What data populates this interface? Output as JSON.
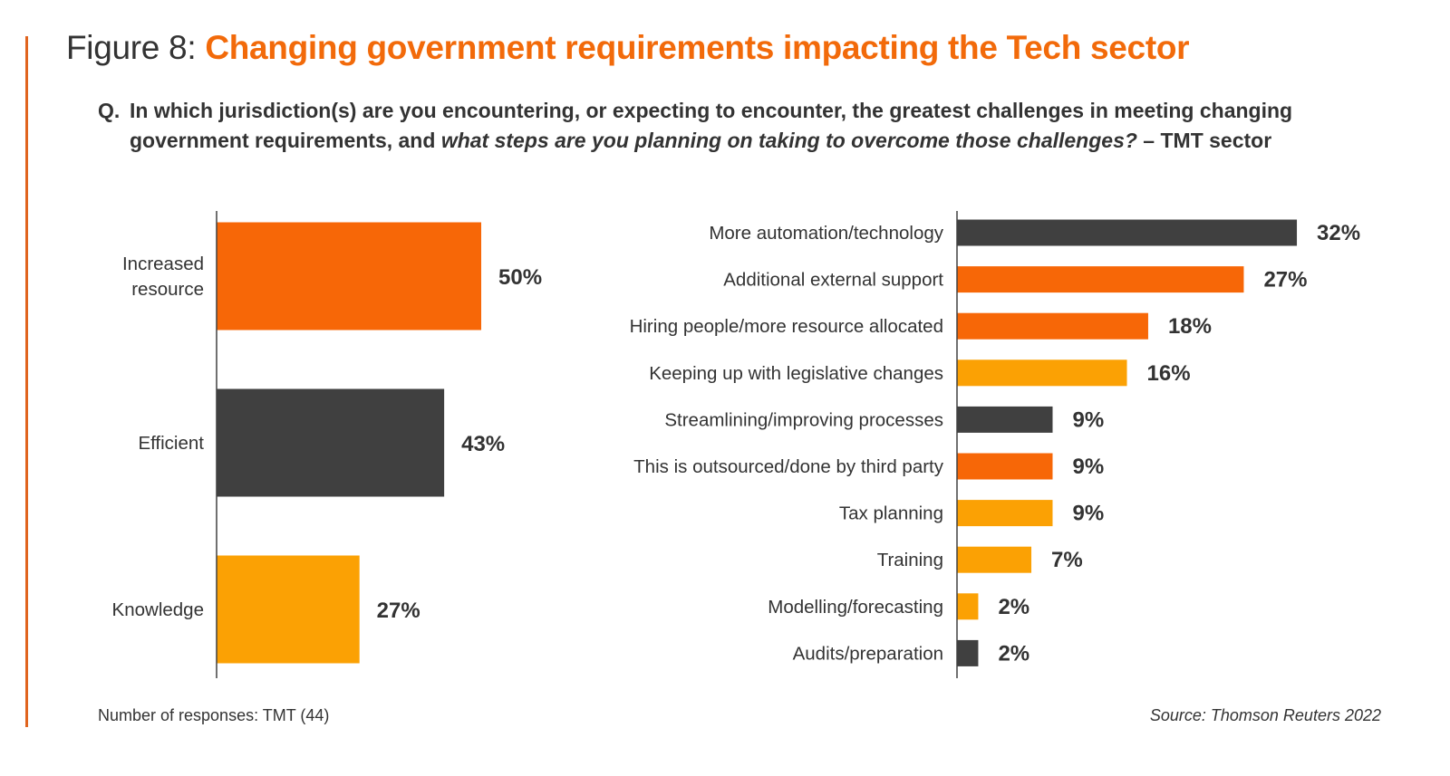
{
  "header": {
    "figure_prefix": "Figure 8:",
    "title": "Changing government requirements impacting the Tech sector",
    "question_marker": "Q.",
    "question_part1": "In which jurisdiction(s) are you encountering, or expecting to encounter, the greatest challenges in meeting changing government requirements, and ",
    "question_italic": "what steps are you planning on taking to overcome those challenges?",
    "question_part2": " – TMT sector"
  },
  "colors": {
    "orange": "#f76707",
    "dark": "#404040",
    "amber": "#fba104",
    "accent": "#e0641e",
    "title_orange": "#f26a0a",
    "axis": "#404040"
  },
  "chart_data": [
    {
      "type": "bar",
      "orientation": "horizontal",
      "title": "",
      "xlabel": "",
      "ylabel": "",
      "xlim": [
        0,
        50
      ],
      "grid": false,
      "categories": [
        "Increased resource",
        "Efficient",
        "Knowledge"
      ],
      "category_lines": [
        [
          "Increased",
          "resource"
        ],
        [
          "Efficient"
        ],
        [
          "Knowledge"
        ]
      ],
      "values": [
        50,
        43,
        27
      ],
      "value_labels": [
        "50%",
        "43%",
        "27%"
      ],
      "bar_colors": [
        "orange",
        "dark",
        "amber"
      ]
    },
    {
      "type": "bar",
      "orientation": "horizontal",
      "title": "",
      "xlabel": "",
      "ylabel": "",
      "xlim": [
        0,
        32
      ],
      "grid": false,
      "categories": [
        "More automation/technology",
        "Additional external support",
        "Hiring people/more resource allocated",
        "Keeping up with legislative changes",
        "Streamlining/improving processes",
        "This is outsourced/done by third party",
        "Tax planning",
        "Training",
        "Modelling/forecasting",
        "Audits/preparation"
      ],
      "values": [
        32,
        27,
        18,
        16,
        9,
        9,
        9,
        7,
        2,
        2
      ],
      "value_labels": [
        "32%",
        "27%",
        "18%",
        "16%",
        "9%",
        "9%",
        "9%",
        "7%",
        "2%",
        "2%"
      ],
      "bar_colors": [
        "dark",
        "orange",
        "orange",
        "amber",
        "dark",
        "orange",
        "amber",
        "amber",
        "amber",
        "dark"
      ]
    }
  ],
  "footer": {
    "responses": "Number of responses: TMT (44)",
    "source": "Source: Thomson Reuters 2022"
  }
}
